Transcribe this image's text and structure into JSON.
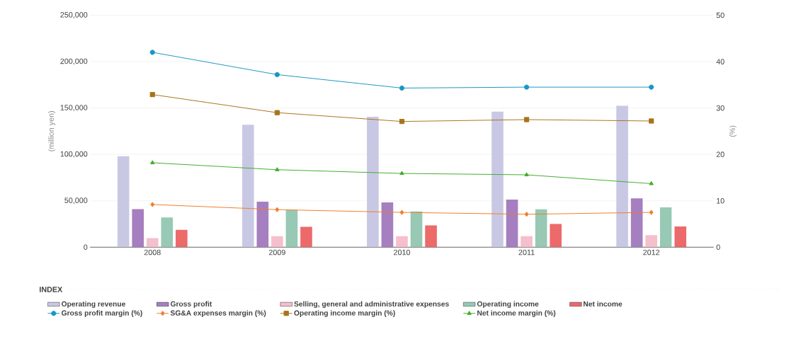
{
  "chart_data": {
    "type": "bar",
    "categories": [
      "2008",
      "2009",
      "2010",
      "2011",
      "2012"
    ],
    "ylabel": "(million yen)",
    "y2label": "(%)",
    "legend_title": "INDEX",
    "legend": "bottom",
    "grid": "y",
    "ylim": [
      0,
      250000
    ],
    "yticks": [
      {
        "value": 0,
        "label": "0"
      },
      {
        "value": 50000,
        "label": "50,000"
      },
      {
        "value": 100000,
        "label": "100,000"
      },
      {
        "value": 150000,
        "label": "150,000"
      },
      {
        "value": 200000,
        "label": "200,000"
      },
      {
        "value": 250000,
        "label": "250,000"
      }
    ],
    "y2lim": [
      0,
      50
    ],
    "y2ticks": [
      0,
      10,
      20,
      30,
      40,
      50
    ],
    "series": [
      {
        "name": "Operating revenue",
        "color": "#c9c8e4",
        "values": [
          98000,
          132000,
          140500,
          146000,
          152500
        ]
      },
      {
        "name": "Gross profit",
        "color": "#a57fbf",
        "values": [
          41000,
          49000,
          48300,
          51300,
          52700
        ]
      },
      {
        "name": "Selling, general and administrative expenses",
        "color": "#f5bfcc",
        "values": [
          9700,
          11900,
          11900,
          11900,
          13000
        ]
      },
      {
        "name": "Operating income",
        "color": "#97c9b4",
        "values": [
          32000,
          40000,
          38600,
          40900,
          43000
        ]
      },
      {
        "name": "Net income",
        "color": "#ec6a6a",
        "values": [
          18700,
          22000,
          23400,
          25200,
          22300
        ]
      },
      {
        "name": "Gross profit margin (%)",
        "type": "line",
        "axis": "y2",
        "marker": "circle",
        "color": "#1a96c4",
        "values": [
          42.0,
          37.2,
          34.3,
          34.5,
          34.5
        ]
      },
      {
        "name": "SG&A expenses margin (%)",
        "type": "line",
        "axis": "y2",
        "marker": "diamond",
        "color": "#ef7d28",
        "values": [
          9.2,
          8.1,
          7.5,
          7.1,
          7.5
        ]
      },
      {
        "name": "Operating income margin (%)",
        "type": "line",
        "axis": "y2",
        "marker": "square",
        "color": "#a8741a",
        "values": [
          32.9,
          29.0,
          27.1,
          27.5,
          27.2
        ]
      },
      {
        "name": "Net income margin (%)",
        "type": "line",
        "axis": "y2",
        "marker": "triangle",
        "color": "#3fae2b",
        "values": [
          18.2,
          16.7,
          15.9,
          15.6,
          13.7
        ]
      }
    ]
  }
}
